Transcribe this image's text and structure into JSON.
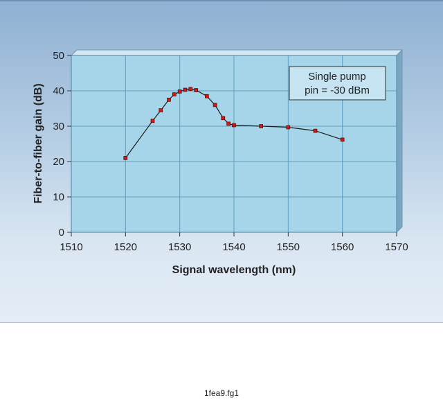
{
  "chart_data": {
    "type": "line",
    "xlabel": "Signal wavelength (nm)",
    "ylabel": "Fiber-to-fiber gain (dB)",
    "xlim": [
      1510,
      1570
    ],
    "ylim": [
      0,
      50
    ],
    "xticks": [
      "1510",
      "1520",
      "1530",
      "1540",
      "1550",
      "1560",
      "1570"
    ],
    "yticks": [
      "0",
      "10",
      "20",
      "30",
      "40",
      "50"
    ],
    "grid": true,
    "annotation": [
      "Single pump",
      "pin = -30 dBm"
    ],
    "annotation_position": "top-right",
    "series": [
      {
        "x": [
          1520,
          1525,
          1526.5,
          1528,
          1529,
          1530,
          1531,
          1532,
          1533,
          1535,
          1536.5,
          1538,
          1539,
          1540,
          1545,
          1550,
          1555,
          1560
        ],
        "y": [
          21,
          31.5,
          34.5,
          37.5,
          39,
          39.8,
          40.3,
          40.5,
          40.2,
          38.5,
          36,
          32.3,
          30.7,
          30.3,
          30,
          29.7,
          28.7,
          26.2
        ]
      }
    ],
    "colors": {
      "plot_bg": "#a6d4e8",
      "grid": "#5f9fc0",
      "marker": "#d01818",
      "line": "#1a1a1a"
    }
  },
  "caption": "1fea9.fg1"
}
